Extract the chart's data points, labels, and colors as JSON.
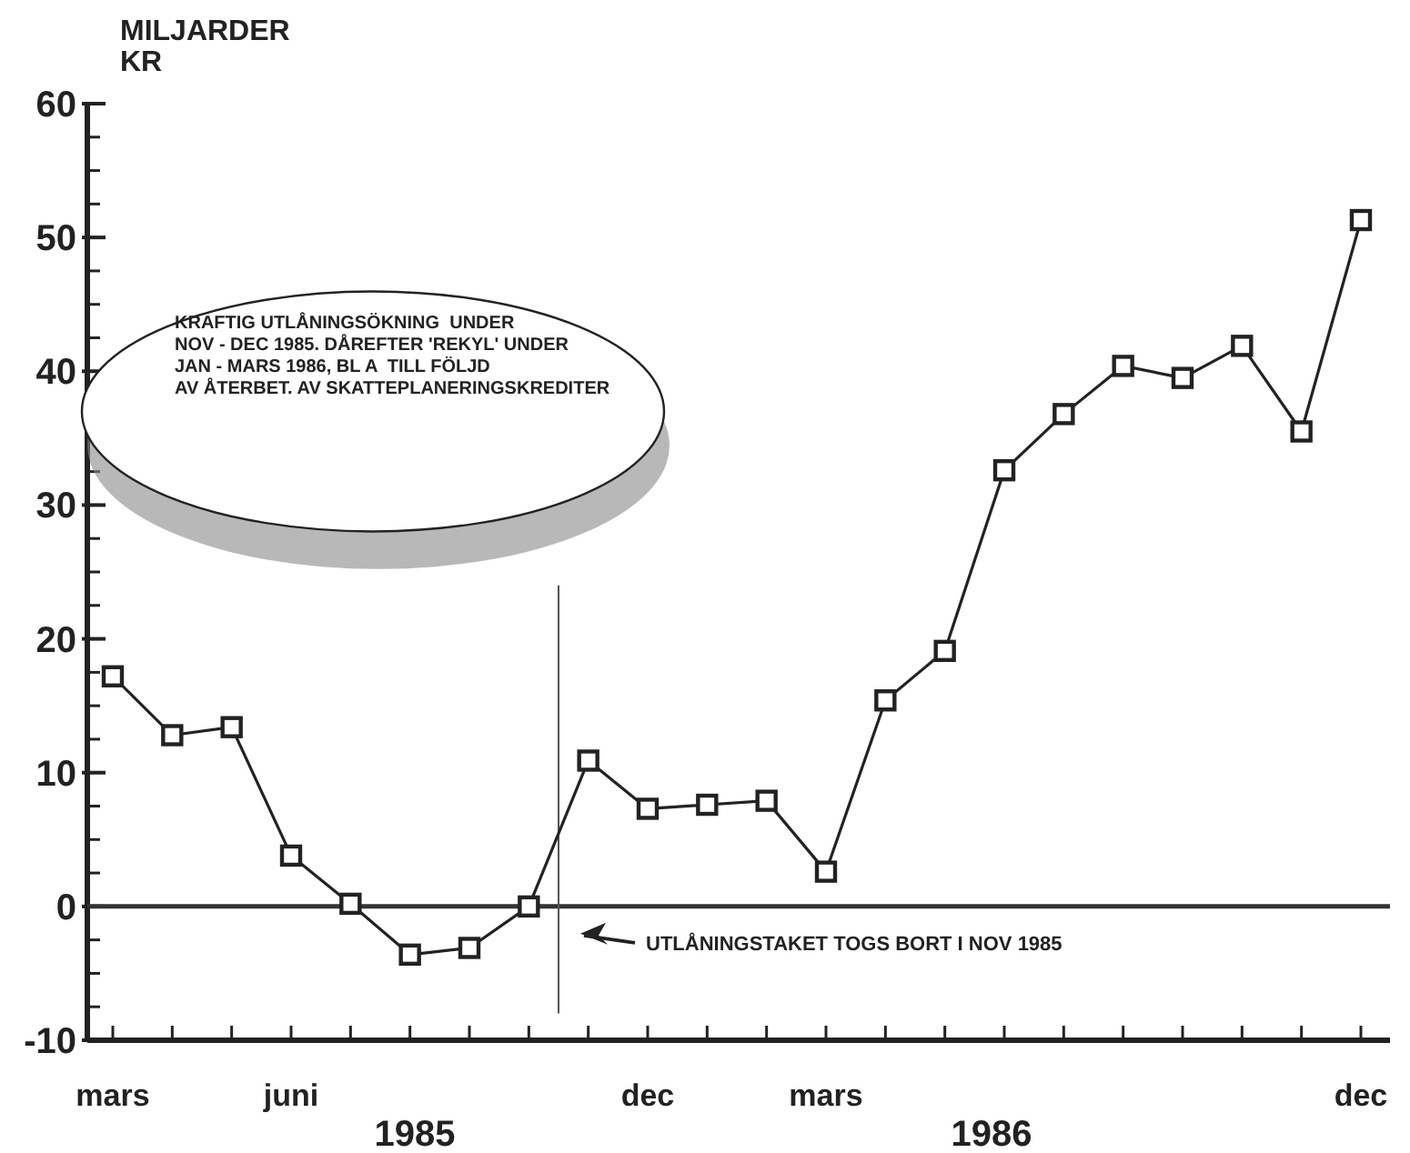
{
  "chart_data": {
    "type": "line",
    "ylabel": "MILJARDER KR",
    "categories": [
      "mars",
      null,
      null,
      "juni",
      null,
      null,
      null,
      null,
      null,
      "dec",
      null,
      null,
      "mars",
      null,
      null,
      null,
      null,
      null,
      null,
      null,
      null,
      "dec"
    ],
    "series": [
      {
        "color": "#222222",
        "values": [
          17.2,
          12.8,
          13.4,
          3.8,
          0.2,
          -3.6,
          -3.1,
          0,
          10.9,
          7.3,
          7.6,
          7.9,
          2.6,
          15.4,
          19.1,
          32.6,
          36.8,
          40.4,
          39.5,
          41.9,
          35.5,
          51.3
        ]
      }
    ],
    "ylim": [
      -10,
      60
    ],
    "yticks": [
      -10,
      0,
      10,
      20,
      30,
      40,
      50,
      60
    ],
    "ref_lines": [
      {
        "axis": "y",
        "value": 0,
        "color": "#333333"
      }
    ],
    "annotations": [
      "KRAFTIG UTLÅNINGSÖKNING  UNDER\nNOV - DEC 1985. DÅREFTER 'REKYL' UNDER\nJAN - MARS 1986, BL A  TILL FÖLJD\nAV ÅTERBET. AV SKATTEPLANERINGSKREDITER",
      "1985",
      "1986",
      "UTLÅNINGSTAKET TOGS BORT I NOV 1985"
    ],
    "marker": "square",
    "line_style": "solid",
    "grid": false
  }
}
